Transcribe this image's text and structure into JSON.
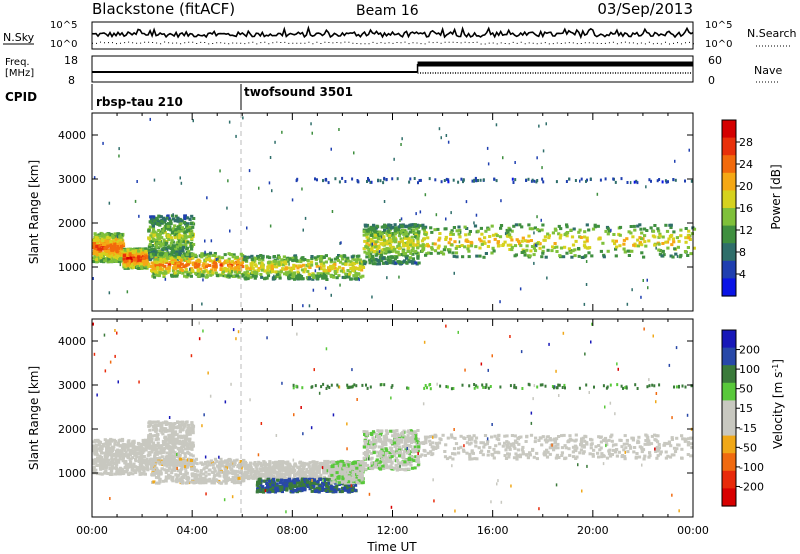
{
  "header": {
    "station": "Blackstone (fitACF)",
    "beam": "Beam 16",
    "date": "03/Sep/2013"
  },
  "top_panels": {
    "nsky_label": "N.Sky",
    "nsearch_label": "N.Search",
    "nsky_ticks": [
      "10^5",
      "10^0"
    ],
    "nsearch_ticks": [
      "10^5",
      "10^0"
    ],
    "freq_label_1": "Freq.",
    "freq_label_2": "[MHz]",
    "freq_ticks": [
      "18",
      "8"
    ],
    "nave_label": "Nave",
    "nave_ticks": [
      "60",
      "0"
    ],
    "cpid_label": "CPID",
    "cpid_segments": [
      {
        "name": "rbsp-tau 210",
        "start_hour": 0,
        "end_hour": 6
      },
      {
        "name": "twofsound 3501",
        "start_hour": 6,
        "end_hour": 24
      }
    ]
  },
  "x_axis": {
    "label": "Time UT",
    "ticks": [
      "00:00",
      "04:00",
      "08:00",
      "12:00",
      "16:00",
      "20:00",
      "00:00"
    ]
  },
  "power_colorbar": {
    "label": "Power [dB]",
    "ticks": [
      "28",
      "24",
      "20",
      "16",
      "12",
      "8",
      "4"
    ],
    "colors": [
      "#0a14e6",
      "#1f3fb0",
      "#2f6e6a",
      "#3f8f3f",
      "#7fc03a",
      "#d6d21e",
      "#f5a815",
      "#f26a0c",
      "#e8300a",
      "#d40000"
    ]
  },
  "velocity_colorbar": {
    "label": "Velocity [m s^-1]",
    "ticks": [
      "200",
      "100",
      "50",
      "15",
      "-15",
      "-50",
      "-100",
      "-200"
    ],
    "colors": [
      "#1818b8",
      "#2848a8",
      "#3a7a3a",
      "#58c83a",
      "#c8c8c0",
      "#c8c8c0",
      "#f0a818",
      "#f06a10",
      "#e82a0a",
      "#d80000"
    ]
  },
  "chart_data": [
    {
      "type": "heatmap",
      "title": "Power",
      "xlabel": "Time UT",
      "ylabel": "Slant Range [km]",
      "xlim": [
        0,
        24
      ],
      "ylim": [
        0,
        4500
      ],
      "yticks": [
        1000,
        2000,
        3000,
        4000
      ],
      "colorbar_label": "Power [dB]",
      "colorbar_range": [
        0,
        30
      ],
      "echo_bands": [
        {
          "x_start": 0.0,
          "x_end": 1.2,
          "range_low": 1150,
          "range_high": 1800,
          "power_db": 24
        },
        {
          "x_start": 1.2,
          "x_end": 2.2,
          "range_low": 1000,
          "range_high": 1450,
          "power_db": 26
        },
        {
          "x_start": 2.2,
          "x_end": 4.0,
          "range_low": 1200,
          "range_high": 2200,
          "power_db": 14
        },
        {
          "x_start": 2.3,
          "x_end": 6.0,
          "range_low": 800,
          "range_high": 1350,
          "power_db": 22
        },
        {
          "x_start": 6.0,
          "x_end": 10.8,
          "range_low": 750,
          "range_high": 1300,
          "power_db": 18
        },
        {
          "x_start": 10.8,
          "x_end": 13.0,
          "range_low": 1100,
          "range_high": 2000,
          "power_db": 16
        },
        {
          "x_start": 13.0,
          "x_end": 24.0,
          "range_low": 1250,
          "range_high": 2000,
          "power_db": 18
        },
        {
          "x_start": 8.0,
          "x_end": 24.0,
          "range_low": 2950,
          "range_high": 3050,
          "power_db": 6
        }
      ]
    },
    {
      "type": "heatmap",
      "title": "Velocity",
      "xlabel": "Time UT",
      "ylabel": "Slant Range [km]",
      "xlim": [
        0,
        24
      ],
      "ylim": [
        0,
        4500
      ],
      "yticks": [
        1000,
        2000,
        3000,
        4000
      ],
      "colorbar_label": "Velocity [m s^-1]",
      "colorbar_range": [
        -250,
        250
      ],
      "echo_bands": [
        {
          "x_start": 0.0,
          "x_end": 2.2,
          "range_low": 1000,
          "range_high": 1800,
          "velocity": 0
        },
        {
          "x_start": 2.2,
          "x_end": 4.0,
          "range_low": 1200,
          "range_high": 2200,
          "velocity": 0
        },
        {
          "x_start": 2.3,
          "x_end": 6.0,
          "range_low": 800,
          "range_high": 1350,
          "velocity": -20
        },
        {
          "x_start": 6.0,
          "x_end": 9.5,
          "range_low": 900,
          "range_high": 1300,
          "velocity": 0
        },
        {
          "x_start": 6.5,
          "x_end": 10.5,
          "range_low": 600,
          "range_high": 900,
          "velocity": 150
        },
        {
          "x_start": 9.5,
          "x_end": 10.8,
          "range_low": 800,
          "range_high": 1300,
          "velocity": 40
        },
        {
          "x_start": 10.8,
          "x_end": 13.0,
          "range_low": 1100,
          "range_high": 2000,
          "velocity": 30
        },
        {
          "x_start": 13.0,
          "x_end": 24.0,
          "range_low": 1350,
          "range_high": 1900,
          "velocity": 0
        },
        {
          "x_start": 8.0,
          "x_end": 24.0,
          "range_low": 2950,
          "range_high": 3050,
          "velocity": 120
        }
      ]
    }
  ]
}
